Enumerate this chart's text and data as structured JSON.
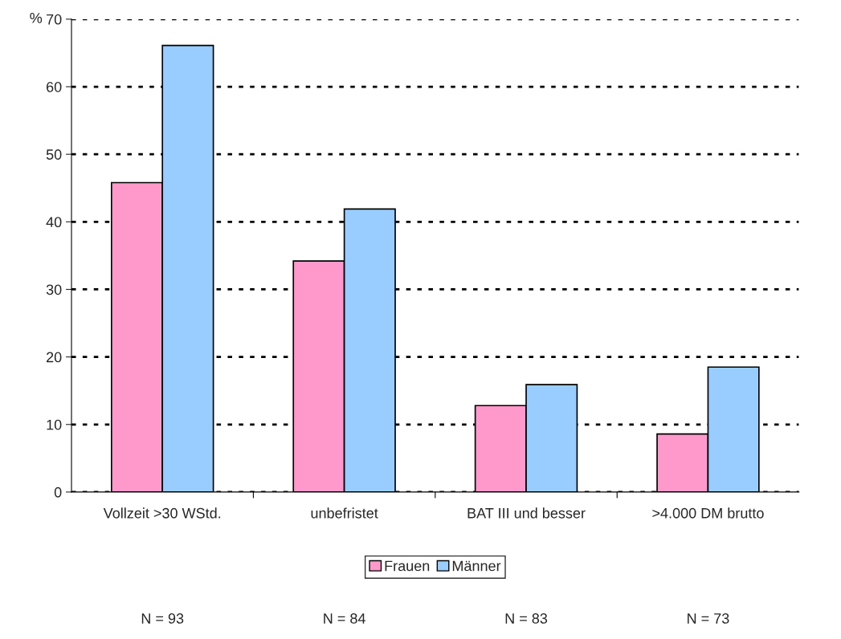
{
  "chart_data": {
    "type": "bar",
    "ylabel": "%",
    "categories": [
      "Vollzeit >30 WStd.",
      "unbefristet",
      "BAT III und besser",
      ">4.000 DM brutto"
    ],
    "series": [
      {
        "name": "Frauen",
        "color": "#ff99cc",
        "values": [
          45.8,
          34.2,
          12.8,
          8.6
        ]
      },
      {
        "name": "Männer",
        "color": "#99ccff",
        "values": [
          66.1,
          41.9,
          15.9,
          18.5
        ]
      }
    ],
    "ylim": [
      0,
      70
    ],
    "yticks": [
      0,
      10,
      20,
      30,
      40,
      50,
      60,
      70
    ],
    "grid": "y",
    "line_style": "dotted",
    "legend": "bottom",
    "annotations": [
      "N = 93",
      "N = 84",
      "N = 83",
      "N = 73"
    ]
  }
}
